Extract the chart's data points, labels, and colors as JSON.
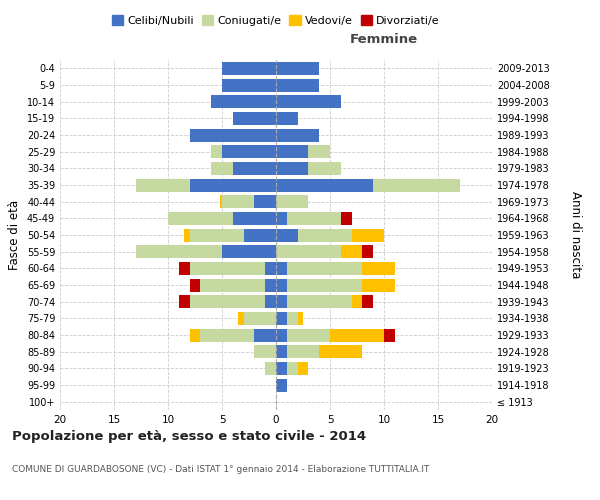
{
  "age_groups": [
    "100+",
    "95-99",
    "90-94",
    "85-89",
    "80-84",
    "75-79",
    "70-74",
    "65-69",
    "60-64",
    "55-59",
    "50-54",
    "45-49",
    "40-44",
    "35-39",
    "30-34",
    "25-29",
    "20-24",
    "15-19",
    "10-14",
    "5-9",
    "0-4"
  ],
  "birth_years": [
    "≤ 1913",
    "1914-1918",
    "1919-1923",
    "1924-1928",
    "1929-1933",
    "1934-1938",
    "1939-1943",
    "1944-1948",
    "1949-1953",
    "1954-1958",
    "1959-1963",
    "1964-1968",
    "1969-1973",
    "1974-1978",
    "1979-1983",
    "1984-1988",
    "1989-1993",
    "1994-1998",
    "1999-2003",
    "2004-2008",
    "2009-2013"
  ],
  "males": {
    "celibe": [
      0,
      0,
      0,
      0,
      2,
      0,
      1,
      1,
      1,
      5,
      3,
      4,
      2,
      8,
      4,
      5,
      8,
      4,
      6,
      5,
      5
    ],
    "coniugato": [
      0,
      0,
      1,
      2,
      5,
      3,
      7,
      6,
      7,
      8,
      5,
      6,
      3,
      5,
      2,
      1,
      0,
      0,
      0,
      0,
      0
    ],
    "vedovo": [
      0,
      0,
      0,
      0,
      1,
      0.5,
      0,
      0,
      0,
      0,
      0.5,
      0,
      0.2,
      0,
      0,
      0,
      0,
      0,
      0,
      0,
      0
    ],
    "divorziato": [
      0,
      0,
      0,
      0,
      0,
      0,
      1,
      1,
      1,
      0,
      0,
      0,
      0,
      0,
      0,
      0,
      0,
      0,
      0,
      0,
      0
    ]
  },
  "females": {
    "nubile": [
      0,
      1,
      1,
      1,
      1,
      1,
      1,
      1,
      1,
      0,
      2,
      1,
      0,
      9,
      3,
      3,
      4,
      2,
      6,
      4,
      4
    ],
    "coniugata": [
      0,
      0,
      1,
      3,
      4,
      1,
      6,
      7,
      7,
      6,
      5,
      5,
      3,
      8,
      3,
      2,
      0,
      0,
      0,
      0,
      0
    ],
    "vedova": [
      0,
      0,
      1,
      4,
      5,
      0.5,
      1,
      3,
      3,
      2,
      3,
      0,
      0,
      0,
      0,
      0,
      0,
      0,
      0,
      0,
      0
    ],
    "divorziata": [
      0,
      0,
      0,
      0,
      1,
      0,
      1,
      0,
      0,
      1,
      0,
      1,
      0,
      0,
      0,
      0,
      0,
      0,
      0,
      0,
      0
    ]
  },
  "colors": {
    "celibe": "#4472c4",
    "coniugato": "#c5d9a0",
    "vedovo": "#ffc000",
    "divorziato": "#c00000"
  },
  "xlim": 20,
  "title": "Popolazione per età, sesso e stato civile - 2014",
  "subtitle": "COMUNE DI GUARDABOSONE (VC) - Dati ISTAT 1° gennaio 2014 - Elaborazione TUTTITALIA.IT",
  "ylabel_left": "Fasce di età",
  "ylabel_right": "Anni di nascita",
  "xlabel_females": "Femmine",
  "legend_labels": [
    "Celibi/Nubili",
    "Coniugati/e",
    "Vedovi/e",
    "Divorziati/e"
  ]
}
